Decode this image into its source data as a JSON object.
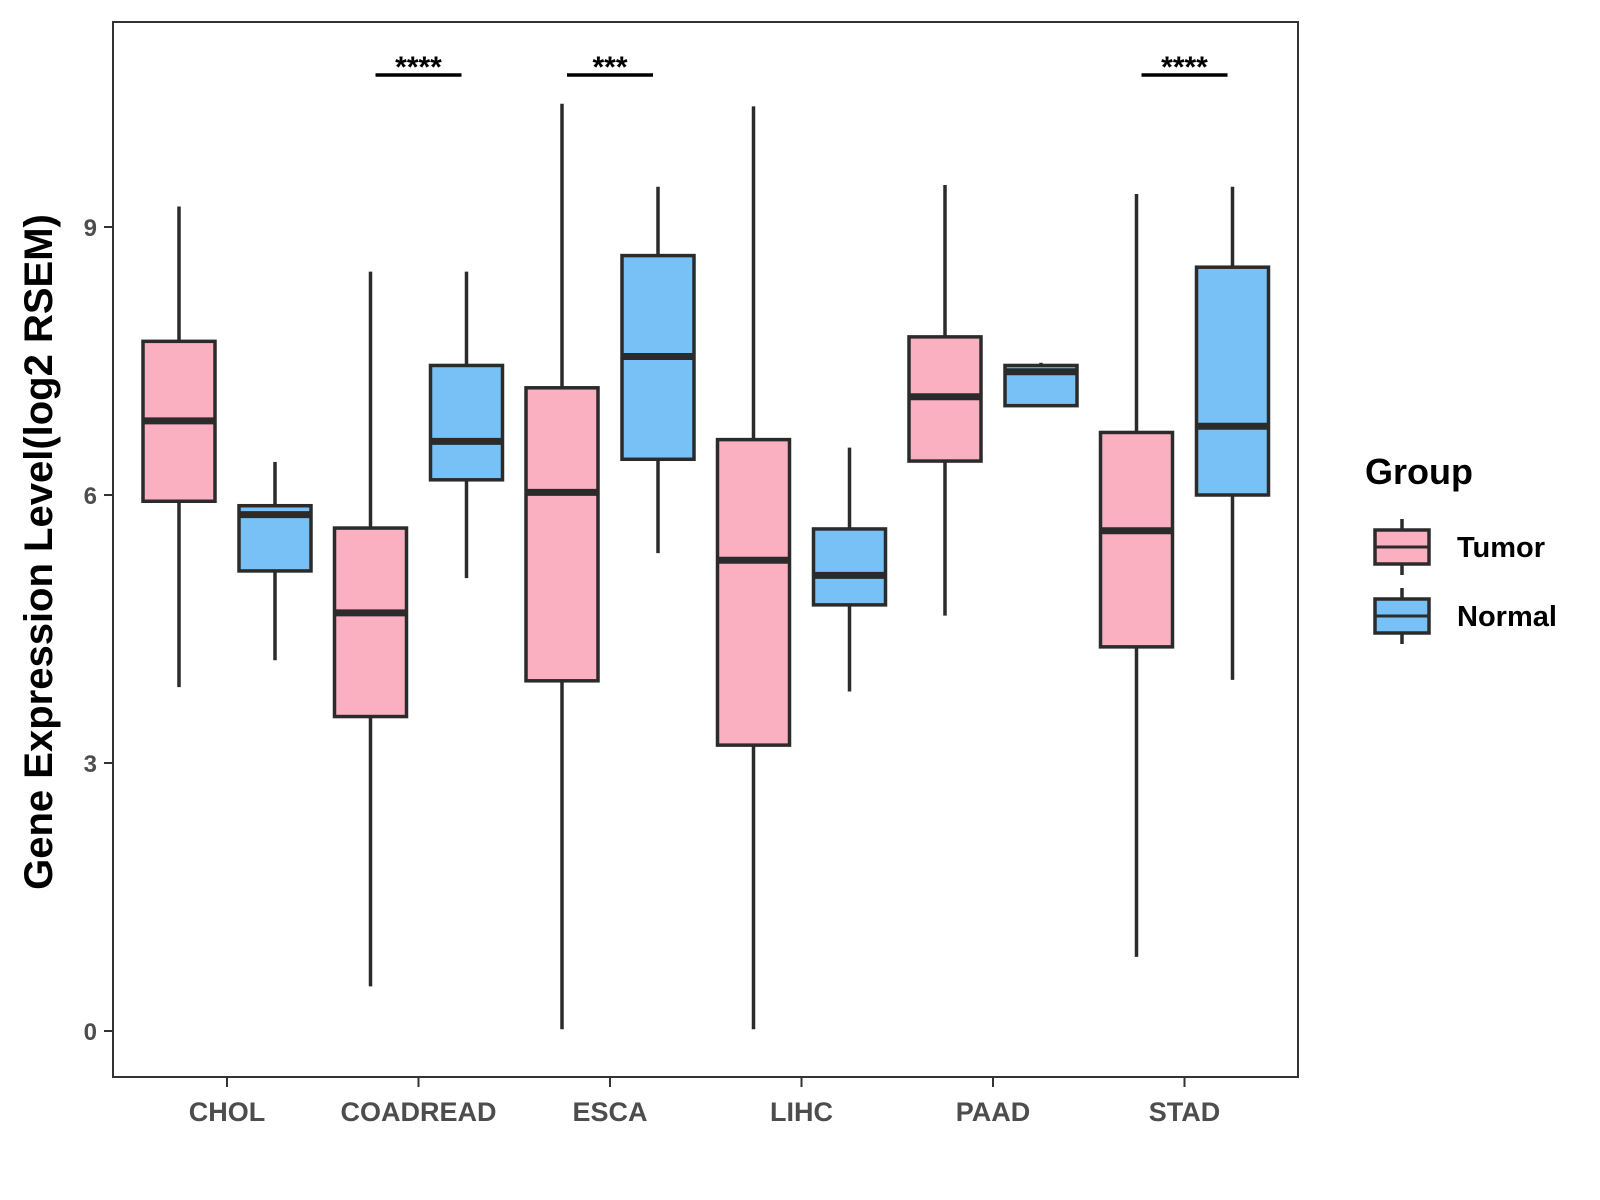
{
  "chart_data": {
    "type": "boxplot",
    "title": "",
    "xlabel": "",
    "ylabel": "Gene Expression Level(log2 RSEM)",
    "ylim": [
      -0.5,
      11.3
    ],
    "yticks": [
      0,
      3,
      6,
      9
    ],
    "grid": false,
    "legend": {
      "title": "Group",
      "position": "right",
      "entries": [
        {
          "name": "Tumor",
          "color": "#fbb0c2"
        },
        {
          "name": "Normal",
          "color": "#77c1f7"
        }
      ]
    },
    "categories": [
      "CHOL",
      "COADREAD",
      "ESCA",
      "LIHC",
      "PAAD",
      "STAD"
    ],
    "series": [
      {
        "name": "Tumor",
        "color": "#fbb0c2",
        "boxes": [
          {
            "min": 3.85,
            "q1": 5.93,
            "median": 6.83,
            "q3": 7.72,
            "max": 9.23
          },
          {
            "min": 0.5,
            "q1": 3.52,
            "median": 4.68,
            "q3": 5.63,
            "max": 8.5
          },
          {
            "min": 0.02,
            "q1": 3.92,
            "median": 6.03,
            "q3": 7.2,
            "max": 10.38
          },
          {
            "min": 0.02,
            "q1": 3.2,
            "median": 5.27,
            "q3": 6.62,
            "max": 10.35
          },
          {
            "min": 4.65,
            "q1": 6.38,
            "median": 7.1,
            "q3": 7.77,
            "max": 9.47
          },
          {
            "min": 0.83,
            "q1": 4.3,
            "median": 5.6,
            "q3": 6.7,
            "max": 9.37
          }
        ]
      },
      {
        "name": "Normal",
        "color": "#77c1f7",
        "boxes": [
          {
            "min": 4.15,
            "q1": 5.15,
            "median": 5.78,
            "q3": 5.88,
            "max": 6.37
          },
          {
            "min": 5.07,
            "q1": 6.17,
            "median": 6.6,
            "q3": 7.45,
            "max": 8.5
          },
          {
            "min": 5.35,
            "q1": 6.4,
            "median": 7.55,
            "q3": 8.68,
            "max": 9.45
          },
          {
            "min": 3.8,
            "q1": 4.77,
            "median": 5.1,
            "q3": 5.62,
            "max": 6.53
          },
          {
            "min": 7.0,
            "q1": 7.0,
            "median": 7.38,
            "q3": 7.45,
            "max": 7.48
          },
          {
            "min": 3.93,
            "q1": 6.0,
            "median": 6.77,
            "q3": 8.55,
            "max": 9.45
          }
        ]
      }
    ],
    "significance": [
      {
        "category": "COADREAD",
        "label": "****"
      },
      {
        "category": "ESCA",
        "label": "***"
      },
      {
        "category": "STAD",
        "label": "****"
      }
    ]
  }
}
